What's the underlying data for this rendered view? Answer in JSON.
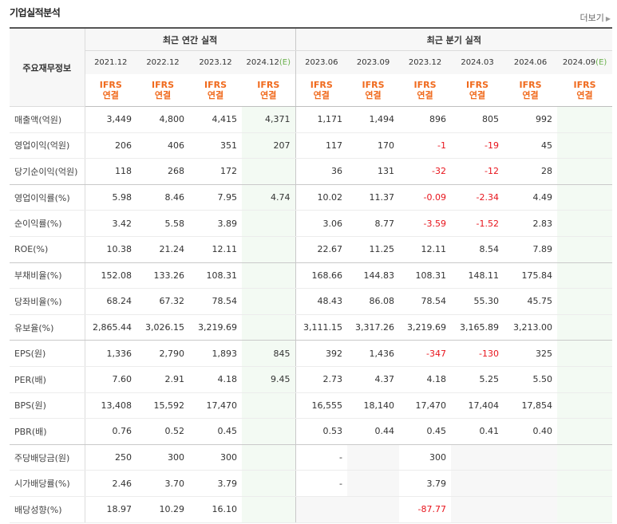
{
  "title": "기업실적분석",
  "more_label": "더보기",
  "header": {
    "row_label": "주요재무정보",
    "annual_label": "최근 연간 실적",
    "quarter_label": "최근 분기 실적",
    "periods": [
      {
        "label": "2021.12",
        "est": ""
      },
      {
        "label": "2022.12",
        "est": ""
      },
      {
        "label": "2023.12",
        "est": ""
      },
      {
        "label": "2024.12",
        "est": "(E)"
      },
      {
        "label": "2023.06",
        "est": ""
      },
      {
        "label": "2023.09",
        "est": ""
      },
      {
        "label": "2023.12",
        "est": ""
      },
      {
        "label": "2024.03",
        "est": ""
      },
      {
        "label": "2024.06",
        "est": ""
      },
      {
        "label": "2024.09",
        "est": "(E)"
      }
    ],
    "basis_line1": "IFRS",
    "basis_line2": "연결"
  },
  "rows": [
    {
      "label": "매출액(억원)",
      "values": [
        "3,449",
        "4,800",
        "4,415",
        "4,371",
        "1,171",
        "1,494",
        "896",
        "805",
        "992",
        ""
      ]
    },
    {
      "label": "영업이익(억원)",
      "values": [
        "206",
        "406",
        "351",
        "207",
        "117",
        "170",
        "-1",
        "-19",
        "45",
        ""
      ]
    },
    {
      "label": "당기순이익(억원)",
      "values": [
        "118",
        "268",
        "172",
        "",
        "36",
        "131",
        "-32",
        "-12",
        "28",
        ""
      ]
    },
    {
      "label": "영업이익률(%)",
      "values": [
        "5.98",
        "8.46",
        "7.95",
        "4.74",
        "10.02",
        "11.37",
        "-0.09",
        "-2.34",
        "4.49",
        ""
      ]
    },
    {
      "label": "순이익률(%)",
      "values": [
        "3.42",
        "5.58",
        "3.89",
        "",
        "3.06",
        "8.77",
        "-3.59",
        "-1.52",
        "2.83",
        ""
      ]
    },
    {
      "label": "ROE(%)",
      "values": [
        "10.38",
        "21.24",
        "12.11",
        "",
        "22.67",
        "11.25",
        "12.11",
        "8.54",
        "7.89",
        ""
      ]
    },
    {
      "label": "부채비율(%)",
      "values": [
        "152.08",
        "133.26",
        "108.31",
        "",
        "168.66",
        "144.83",
        "108.31",
        "148.11",
        "175.84",
        ""
      ]
    },
    {
      "label": "당좌비율(%)",
      "values": [
        "68.24",
        "67.32",
        "78.54",
        "",
        "48.43",
        "86.08",
        "78.54",
        "55.30",
        "45.75",
        ""
      ]
    },
    {
      "label": "유보율(%)",
      "values": [
        "2,865.44",
        "3,026.15",
        "3,219.69",
        "",
        "3,111.15",
        "3,317.26",
        "3,219.69",
        "3,165.89",
        "3,213.00",
        ""
      ]
    },
    {
      "label": "EPS(원)",
      "values": [
        "1,336",
        "2,790",
        "1,893",
        "845",
        "392",
        "1,436",
        "-347",
        "-130",
        "325",
        ""
      ]
    },
    {
      "label": "PER(배)",
      "values": [
        "7.60",
        "2.91",
        "4.18",
        "9.45",
        "2.73",
        "4.37",
        "4.18",
        "5.25",
        "5.50",
        ""
      ]
    },
    {
      "label": "BPS(원)",
      "values": [
        "13,408",
        "15,592",
        "17,470",
        "",
        "16,555",
        "18,140",
        "17,470",
        "17,404",
        "17,854",
        ""
      ]
    },
    {
      "label": "PBR(배)",
      "values": [
        "0.76",
        "0.52",
        "0.45",
        "",
        "0.53",
        "0.44",
        "0.45",
        "0.41",
        "0.40",
        ""
      ]
    },
    {
      "label": "주당배당금(원)",
      "values": [
        "250",
        "300",
        "300",
        "",
        "-",
        "",
        "300",
        "",
        "",
        ""
      ]
    },
    {
      "label": "시가배당률(%)",
      "values": [
        "2.46",
        "3.70",
        "3.79",
        "",
        "-",
        "",
        "3.79",
        "",
        "",
        ""
      ]
    },
    {
      "label": "배당성향(%)",
      "values": [
        "18.97",
        "10.29",
        "16.10",
        "",
        "",
        "",
        "-87.77",
        "",
        "",
        ""
      ]
    }
  ]
}
